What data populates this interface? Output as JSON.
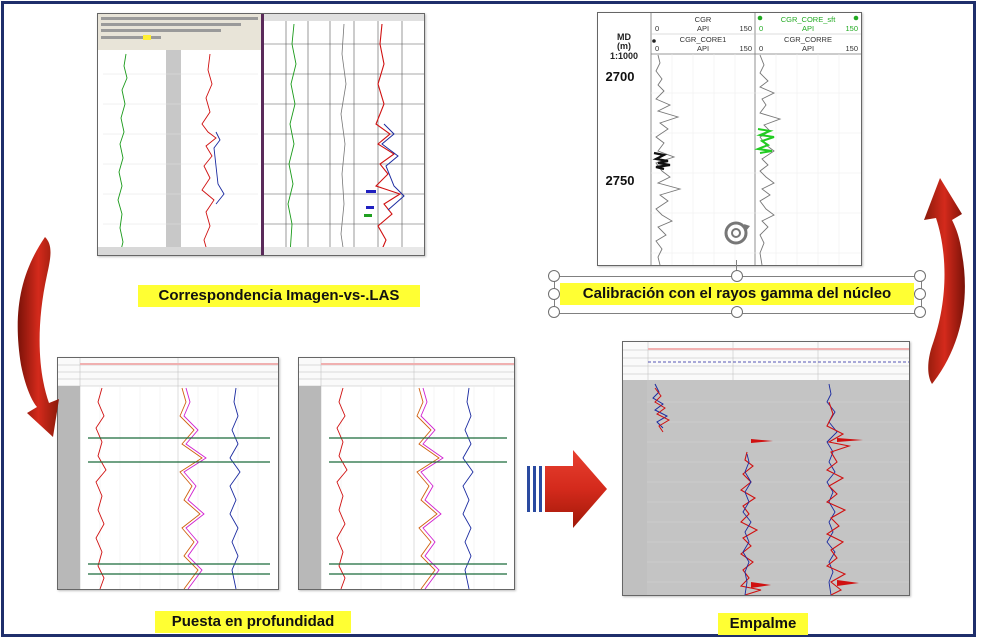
{
  "captions": {
    "correspondence": "Correspondencia Imagen-vs-.LAS",
    "calibration": "Calibración con el rayos gamma del núcleo",
    "depth_setting": "Puesta en profundidad",
    "splice": "Empalme"
  },
  "calibration_panel": {
    "depth_header": "MD",
    "depth_unit": "(m)",
    "scale": "1:1000",
    "depth_ticks": [
      "2700",
      "2750"
    ],
    "track1": {
      "curve_top": "CGR",
      "unit_top": "API",
      "min_top": "0",
      "max_top": "150",
      "curve_bottom": "CGR_CORE1",
      "unit_bottom": "API",
      "min_bottom": "0",
      "max_bottom": "150"
    },
    "track2": {
      "curve_top": "CGR_CORE_sft",
      "unit_top": "API",
      "min_top": "0",
      "max_top": "150",
      "curve_bottom": "CGR_CORRE",
      "unit_bottom": "API",
      "min_bottom": "0",
      "max_bottom": "150"
    }
  },
  "colors": {
    "frame": "#1f2f6b",
    "label_bg": "#ffff33",
    "arrow_red": "#d42a1c",
    "arrow_dark": "#7a1208",
    "log_red": "#d01010",
    "log_blue": "#1a2aa0",
    "log_green": "#1a9a1a",
    "log_magenta": "#d020d0",
    "core_green": "#22cc22"
  }
}
